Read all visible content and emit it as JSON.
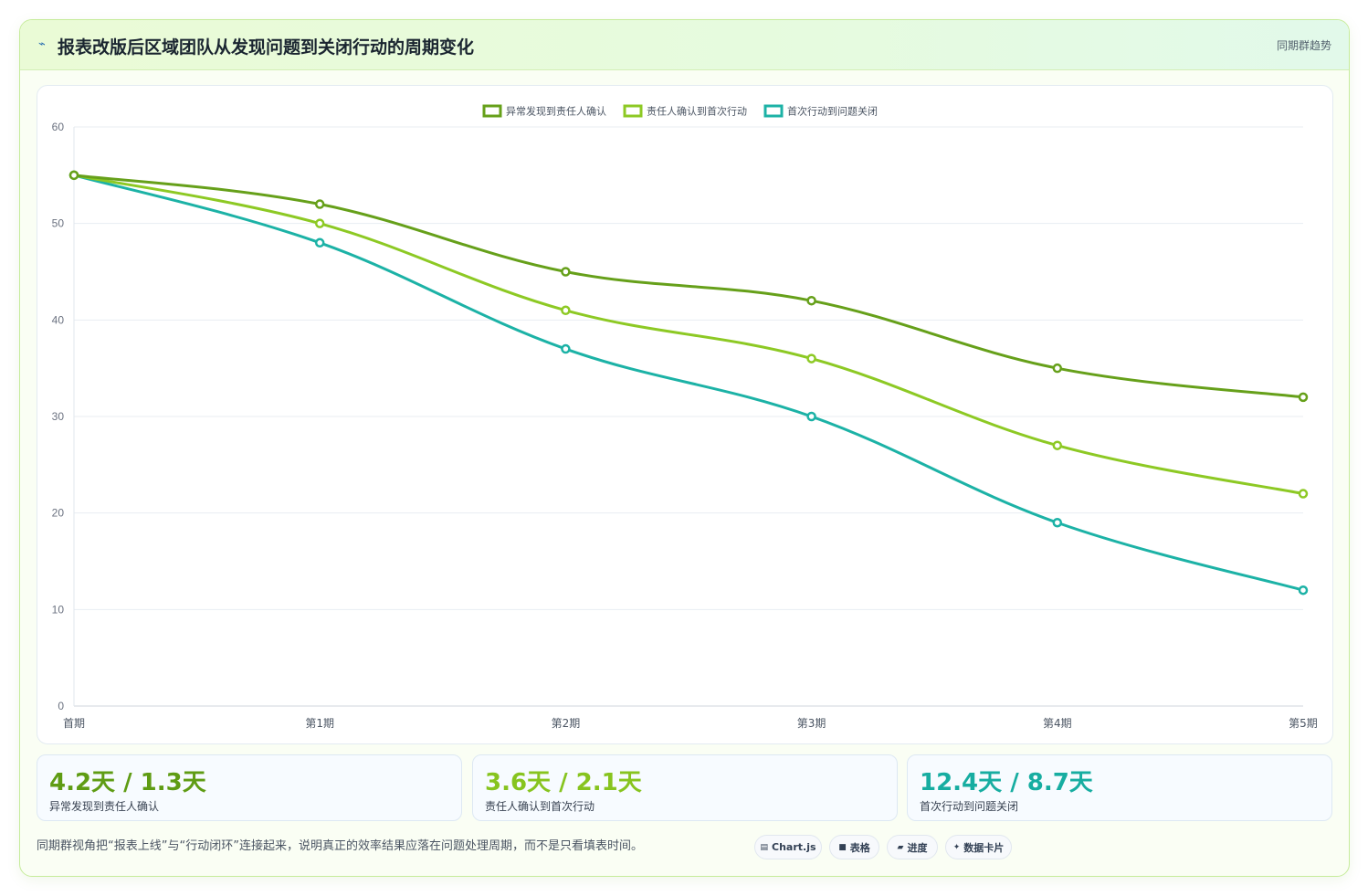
{
  "header": {
    "icon": "chart-trend-icon",
    "title": "报表改版后区域团队从发现问题到关闭行动的周期变化",
    "badge": "同期群趋势"
  },
  "chart_data": {
    "type": "line",
    "categories": [
      "首期",
      "第1期",
      "第2期",
      "第3期",
      "第4期",
      "第5期"
    ],
    "series": [
      {
        "name": "异常发现到责任人确认",
        "color": "#66a01a",
        "values": [
          55,
          52,
          45,
          42,
          35,
          32
        ]
      },
      {
        "name": "责任人确认到首次行动",
        "color": "#8dc924",
        "values": [
          55,
          50,
          41,
          36,
          27,
          22
        ]
      },
      {
        "name": "首次行动到问题关闭",
        "color": "#1cb2a6",
        "values": [
          55,
          48,
          37,
          30,
          19,
          12
        ]
      }
    ],
    "ylim": [
      0,
      60
    ],
    "yticks": [
      0,
      10,
      20,
      30,
      40,
      50,
      60
    ],
    "grid": true,
    "legend": "top-center"
  },
  "stats": [
    {
      "value": "4.2天 / 1.3天",
      "label": "异常发现到责任人确认",
      "color": "#5f9c14"
    },
    {
      "value": "3.6天 / 2.1天",
      "label": "责任人确认到首次行动",
      "color": "#87c41f"
    },
    {
      "value": "12.4天 / 8.7天",
      "label": "首次行动到问题关闭",
      "color": "#17ada1"
    }
  ],
  "footer": {
    "note": "同期群视角把“报表上线”与“行动闭环”连接起来，说明真正的效率结果应落在问题处理周期，而不是只看填表时间。",
    "tags": [
      {
        "icon": "chart-icon",
        "label": "Chart.js"
      },
      {
        "icon": "table-icon",
        "label": "表格"
      },
      {
        "icon": "progress-icon",
        "label": "进度"
      },
      {
        "icon": "sparkle-icon",
        "label": "数据卡片"
      }
    ]
  }
}
